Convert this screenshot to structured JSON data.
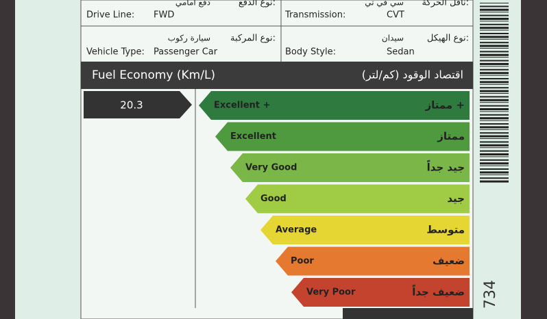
{
  "rows": [
    [
      {
        "en_label": "Drive Line:",
        "en_value": "FWD",
        "ar_label": "نوع الدفع:",
        "ar_value": "دفع أمامي"
      },
      {
        "en_label": "Transmission:",
        "en_value": "CVT",
        "ar_label": "ناقل الحركة:",
        "ar_value": "سي في تي"
      }
    ],
    [
      {
        "en_label": "Vehicle Type:",
        "en_value": "Passenger Car",
        "ar_label": "نوع المركبة:",
        "ar_value": "سيارة ركوب"
      },
      {
        "en_label": "Body Style:",
        "en_value": "Sedan",
        "ar_label": "نوع الهيكل:",
        "ar_value": "سيدان"
      }
    ]
  ],
  "fuel": {
    "title_en": "Fuel Economy (Km/L)",
    "title_ar": "اقتصاد الوقود (كم/لتر)",
    "value": "20.3",
    "ratings": [
      {
        "en": "Excellent +",
        "ar": "ممتاز +",
        "color": "#2f7a3e"
      },
      {
        "en": "Excellent",
        "ar": "ممتاز",
        "color": "#4f9a3e"
      },
      {
        "en": "Very Good",
        "ar": "جيد جداً",
        "color": "#7ab648"
      },
      {
        "en": "Good",
        "ar": "جيد",
        "color": "#9fcb45"
      },
      {
        "en": "Average",
        "ar": "متوسط",
        "color": "#e6d633"
      },
      {
        "en": "Poor",
        "ar": "ضعيف",
        "color": "#e5792f"
      },
      {
        "en": "Very Poor",
        "ar": "ضعيف جداً",
        "color": "#c4432f"
      }
    ]
  },
  "barcode_number": "734"
}
